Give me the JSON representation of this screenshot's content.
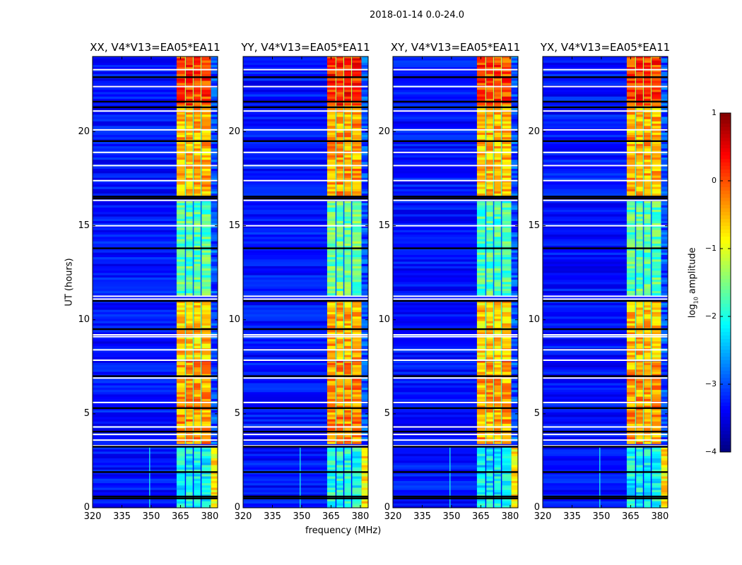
{
  "suptitle": "2018-01-14 0.0-24.0",
  "panels": [
    {
      "title": "XX, V4*V13=EA05*EA11"
    },
    {
      "title": "YY, V4*V13=EA05*EA11"
    },
    {
      "title": "XY, V4*V13=EA05*EA11"
    },
    {
      "title": "YX, V4*V13=EA05*EA11"
    }
  ],
  "chart_data": {
    "type": "heatmap",
    "title": "2018-01-14 0.0-24.0",
    "xlabel": "frequency (MHz)",
    "ylabel": "UT (hours)",
    "xlim": [
      320,
      384
    ],
    "ylim": [
      0,
      24
    ],
    "xticks": [
      "320",
      "335",
      "350",
      "365",
      "380"
    ],
    "xtick_values": [
      320,
      335,
      350,
      365,
      380
    ],
    "yticks": [
      "0",
      "5",
      "10",
      "15",
      "20"
    ],
    "ytick_values": [
      0,
      5,
      10,
      15,
      20
    ],
    "colorbar": {
      "label": "log10 amplitude",
      "label_main": "log",
      "label_sub": "10",
      "label_tail": " amplitude",
      "range": [
        -4,
        1
      ],
      "ticks": [
        "1",
        "0",
        "−1",
        "−2",
        "−3",
        "−4"
      ],
      "tick_values": [
        1,
        0,
        -1,
        -2,
        -3,
        -4
      ],
      "colormap": "jet"
    },
    "background_level": -3.3,
    "rfi_band_mhz": [
      363,
      381
    ],
    "segments": [
      {
        "t": [
          0.0,
          3.2
        ],
        "band": -2.1,
        "edge": -0.8
      },
      {
        "t": [
          3.4,
          7.8
        ],
        "band": -0.4,
        "edge": -3.0
      },
      {
        "t": [
          7.9,
          11.0
        ],
        "band": -0.6,
        "edge": -3.0
      },
      {
        "t": [
          11.3,
          16.3
        ],
        "band": -1.7,
        "edge": -3.0
      },
      {
        "t": [
          16.6,
          21.4
        ],
        "band": -0.5,
        "edge": -3.0
      },
      {
        "t": [
          21.4,
          24.0
        ],
        "band": 0.1,
        "edge": -3.0
      }
    ],
    "flagged_white_hours": [
      3.3,
      3.6,
      3.9,
      4.3,
      5.6,
      6.9,
      7.85,
      8.4,
      9.1,
      9.2,
      11.1,
      11.25,
      15.0,
      16.35,
      17.4,
      18.2,
      18.9,
      20.1,
      21.1,
      22.4,
      23.3
    ],
    "flagged_dark_hours": [
      0.5,
      0.6,
      1.9,
      3.25,
      4.05,
      5.3,
      7.0,
      9.5,
      11.0,
      13.8,
      16.45,
      16.55,
      19.5,
      21.3,
      21.6,
      22.9
    ],
    "panel_gain": [
      0,
      0.1,
      -0.05,
      0
    ]
  }
}
